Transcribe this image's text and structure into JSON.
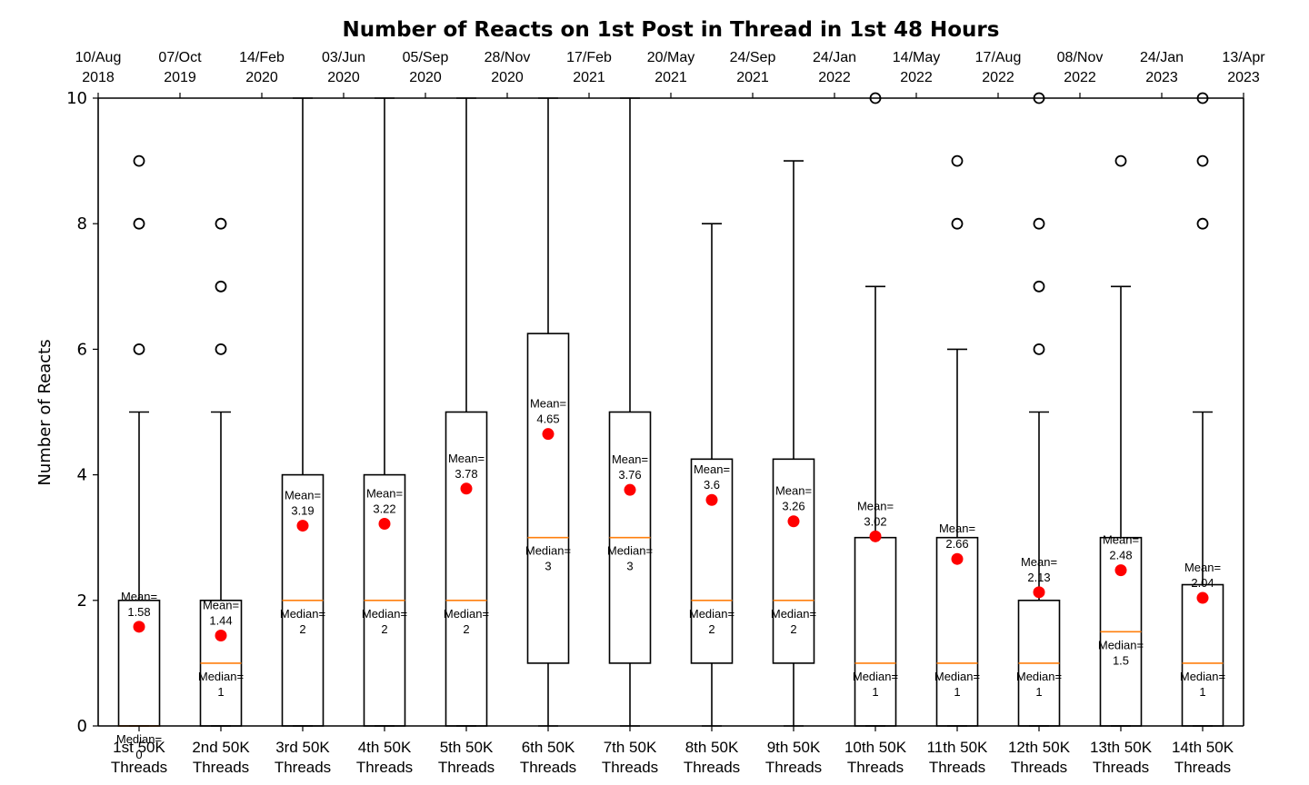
{
  "chart_data": {
    "type": "boxplot",
    "title": "Number of Reacts on 1st Post in Thread in 1st 48 Hours",
    "ylabel": "Number of Reacts",
    "ylim": [
      0,
      10
    ],
    "yticks": [
      0,
      2,
      4,
      6,
      8,
      10
    ],
    "top_axis_ticks": [
      [
        "10/Aug",
        "2018"
      ],
      [
        "07/Oct",
        "2019"
      ],
      [
        "14/Feb",
        "2020"
      ],
      [
        "03/Jun",
        "2020"
      ],
      [
        "05/Sep",
        "2020"
      ],
      [
        "28/Nov",
        "2020"
      ],
      [
        "17/Feb",
        "2021"
      ],
      [
        "20/May",
        "2021"
      ],
      [
        "24/Sep",
        "2021"
      ],
      [
        "24/Jan",
        "2022"
      ],
      [
        "14/May",
        "2022"
      ],
      [
        "17/Aug",
        "2022"
      ],
      [
        "08/Nov",
        "2022"
      ],
      [
        "24/Jan",
        "2023"
      ],
      [
        "13/Apr",
        "2023"
      ]
    ],
    "mean_prefix": "Mean=",
    "median_prefix": "Median=",
    "colors": {
      "box": "#000000",
      "median": "#ff7f0e",
      "mean": "#ff0000"
    },
    "groups": [
      {
        "label": [
          "1st 50K",
          "Threads"
        ],
        "q1": 0,
        "median": 0,
        "q3": 2,
        "whisker_low": 0,
        "whisker_high": 5,
        "mean": "1.58",
        "median_text": "0",
        "fliers": [
          6,
          8,
          9
        ]
      },
      {
        "label": [
          "2nd 50K",
          "Threads"
        ],
        "q1": 0,
        "median": 1,
        "q3": 2,
        "whisker_low": 0,
        "whisker_high": 5,
        "mean": "1.44",
        "median_text": "1",
        "fliers": [
          6,
          7,
          8
        ]
      },
      {
        "label": [
          "3rd 50K",
          "Threads"
        ],
        "q1": 0,
        "median": 2,
        "q3": 4,
        "whisker_low": 0,
        "whisker_high": 10,
        "mean": "3.19",
        "median_text": "2",
        "fliers": []
      },
      {
        "label": [
          "4th 50K",
          "Threads"
        ],
        "q1": 0,
        "median": 2,
        "q3": 4,
        "whisker_low": 0,
        "whisker_high": 10,
        "mean": "3.22",
        "median_text": "2",
        "fliers": []
      },
      {
        "label": [
          "5th 50K",
          "Threads"
        ],
        "q1": 0,
        "median": 2,
        "q3": 5,
        "whisker_low": 0,
        "whisker_high": 10,
        "mean": "3.78",
        "median_text": "2",
        "fliers": []
      },
      {
        "label": [
          "6th 50K",
          "Threads"
        ],
        "q1": 1,
        "median": 3,
        "q3": 6.25,
        "whisker_low": 0,
        "whisker_high": 10,
        "mean": "4.65",
        "median_text": "3",
        "fliers": []
      },
      {
        "label": [
          "7th 50K",
          "Threads"
        ],
        "q1": 1,
        "median": 3,
        "q3": 5,
        "whisker_low": 0,
        "whisker_high": 10,
        "mean": "3.76",
        "median_text": "3",
        "fliers": []
      },
      {
        "label": [
          "8th 50K",
          "Threads"
        ],
        "q1": 1,
        "median": 2,
        "q3": 4.25,
        "whisker_low": 0,
        "whisker_high": 8,
        "mean": "3.6",
        "median_text": "2",
        "fliers": []
      },
      {
        "label": [
          "9th 50K",
          "Threads"
        ],
        "q1": 1,
        "median": 2,
        "q3": 4.25,
        "whisker_low": 0,
        "whisker_high": 9,
        "mean": "3.26",
        "median_text": "2",
        "fliers": []
      },
      {
        "label": [
          "10th 50K",
          "Threads"
        ],
        "q1": 0,
        "median": 1,
        "q3": 3,
        "whisker_low": 0,
        "whisker_high": 7,
        "mean": "3.02",
        "median_text": "1",
        "fliers": [
          10
        ]
      },
      {
        "label": [
          "11th 50K",
          "Threads"
        ],
        "q1": 0,
        "median": 1,
        "q3": 3,
        "whisker_low": 0,
        "whisker_high": 6,
        "mean": "2.66",
        "median_text": "1",
        "fliers": [
          8,
          9
        ]
      },
      {
        "label": [
          "12th 50K",
          "Threads"
        ],
        "q1": 0,
        "median": 1,
        "q3": 2,
        "whisker_low": 0,
        "whisker_high": 5,
        "mean": "2.13",
        "median_text": "1",
        "fliers": [
          6,
          7,
          8,
          10
        ]
      },
      {
        "label": [
          "13th 50K",
          "Threads"
        ],
        "q1": 0,
        "median": 1.5,
        "q3": 3,
        "whisker_low": 0,
        "whisker_high": 7,
        "mean": "2.48",
        "median_text": "1.5",
        "fliers": [
          9
        ]
      },
      {
        "label": [
          "14th 50K",
          "Threads"
        ],
        "q1": 0,
        "median": 1,
        "q3": 2.25,
        "whisker_low": 0,
        "whisker_high": 5,
        "mean": "2.04",
        "median_text": "1",
        "fliers": [
          8,
          9,
          10
        ]
      }
    ]
  }
}
